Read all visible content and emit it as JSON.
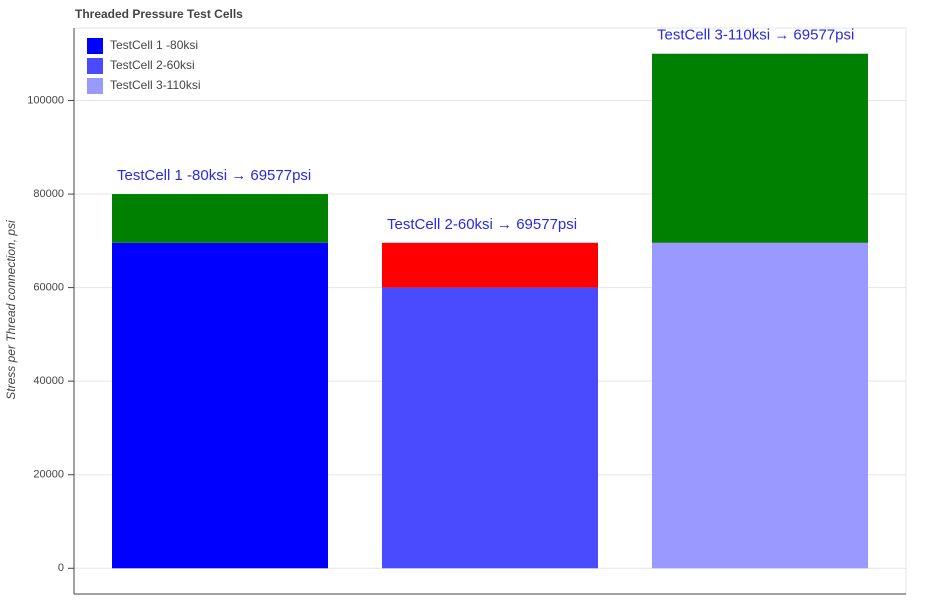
{
  "chart_data": {
    "type": "stacked-bar",
    "title": "Threaded Pressure Test Cells",
    "y_label": "Stress per Thread connection, psi",
    "categories": [
      null,
      null,
      null
    ],
    "legend": [
      {
        "name": "TestCell 1 -80ksi",
        "color": "#0000ff"
      },
      {
        "name": "TestCell 2-60ksi",
        "color": "#4a4aff"
      },
      {
        "name": "TestCell 3-110ksi",
        "color": "#9999ff"
      }
    ],
    "series": [
      {
        "colors": [
          "#0000ff",
          "#4a4aff",
          "#9999ff"
        ],
        "values": [
          69577,
          60000,
          69577
        ]
      },
      {
        "colors": [
          "#008000",
          "#ff0000",
          "#008000"
        ],
        "values": [
          10423,
          9577,
          40423
        ]
      }
    ],
    "annotations": [
      "TestCell 1 -80ksi → 69577psi",
      "TestCell 2-60ksi → 69577psi",
      "TestCell 3-110ksi → 69577psi"
    ],
    "annotation_color": "#2a2ae0",
    "ylim": [
      -5500,
      115500
    ],
    "yticks": [
      0,
      20000,
      40000,
      60000,
      80000,
      100000
    ],
    "grid": true
  }
}
